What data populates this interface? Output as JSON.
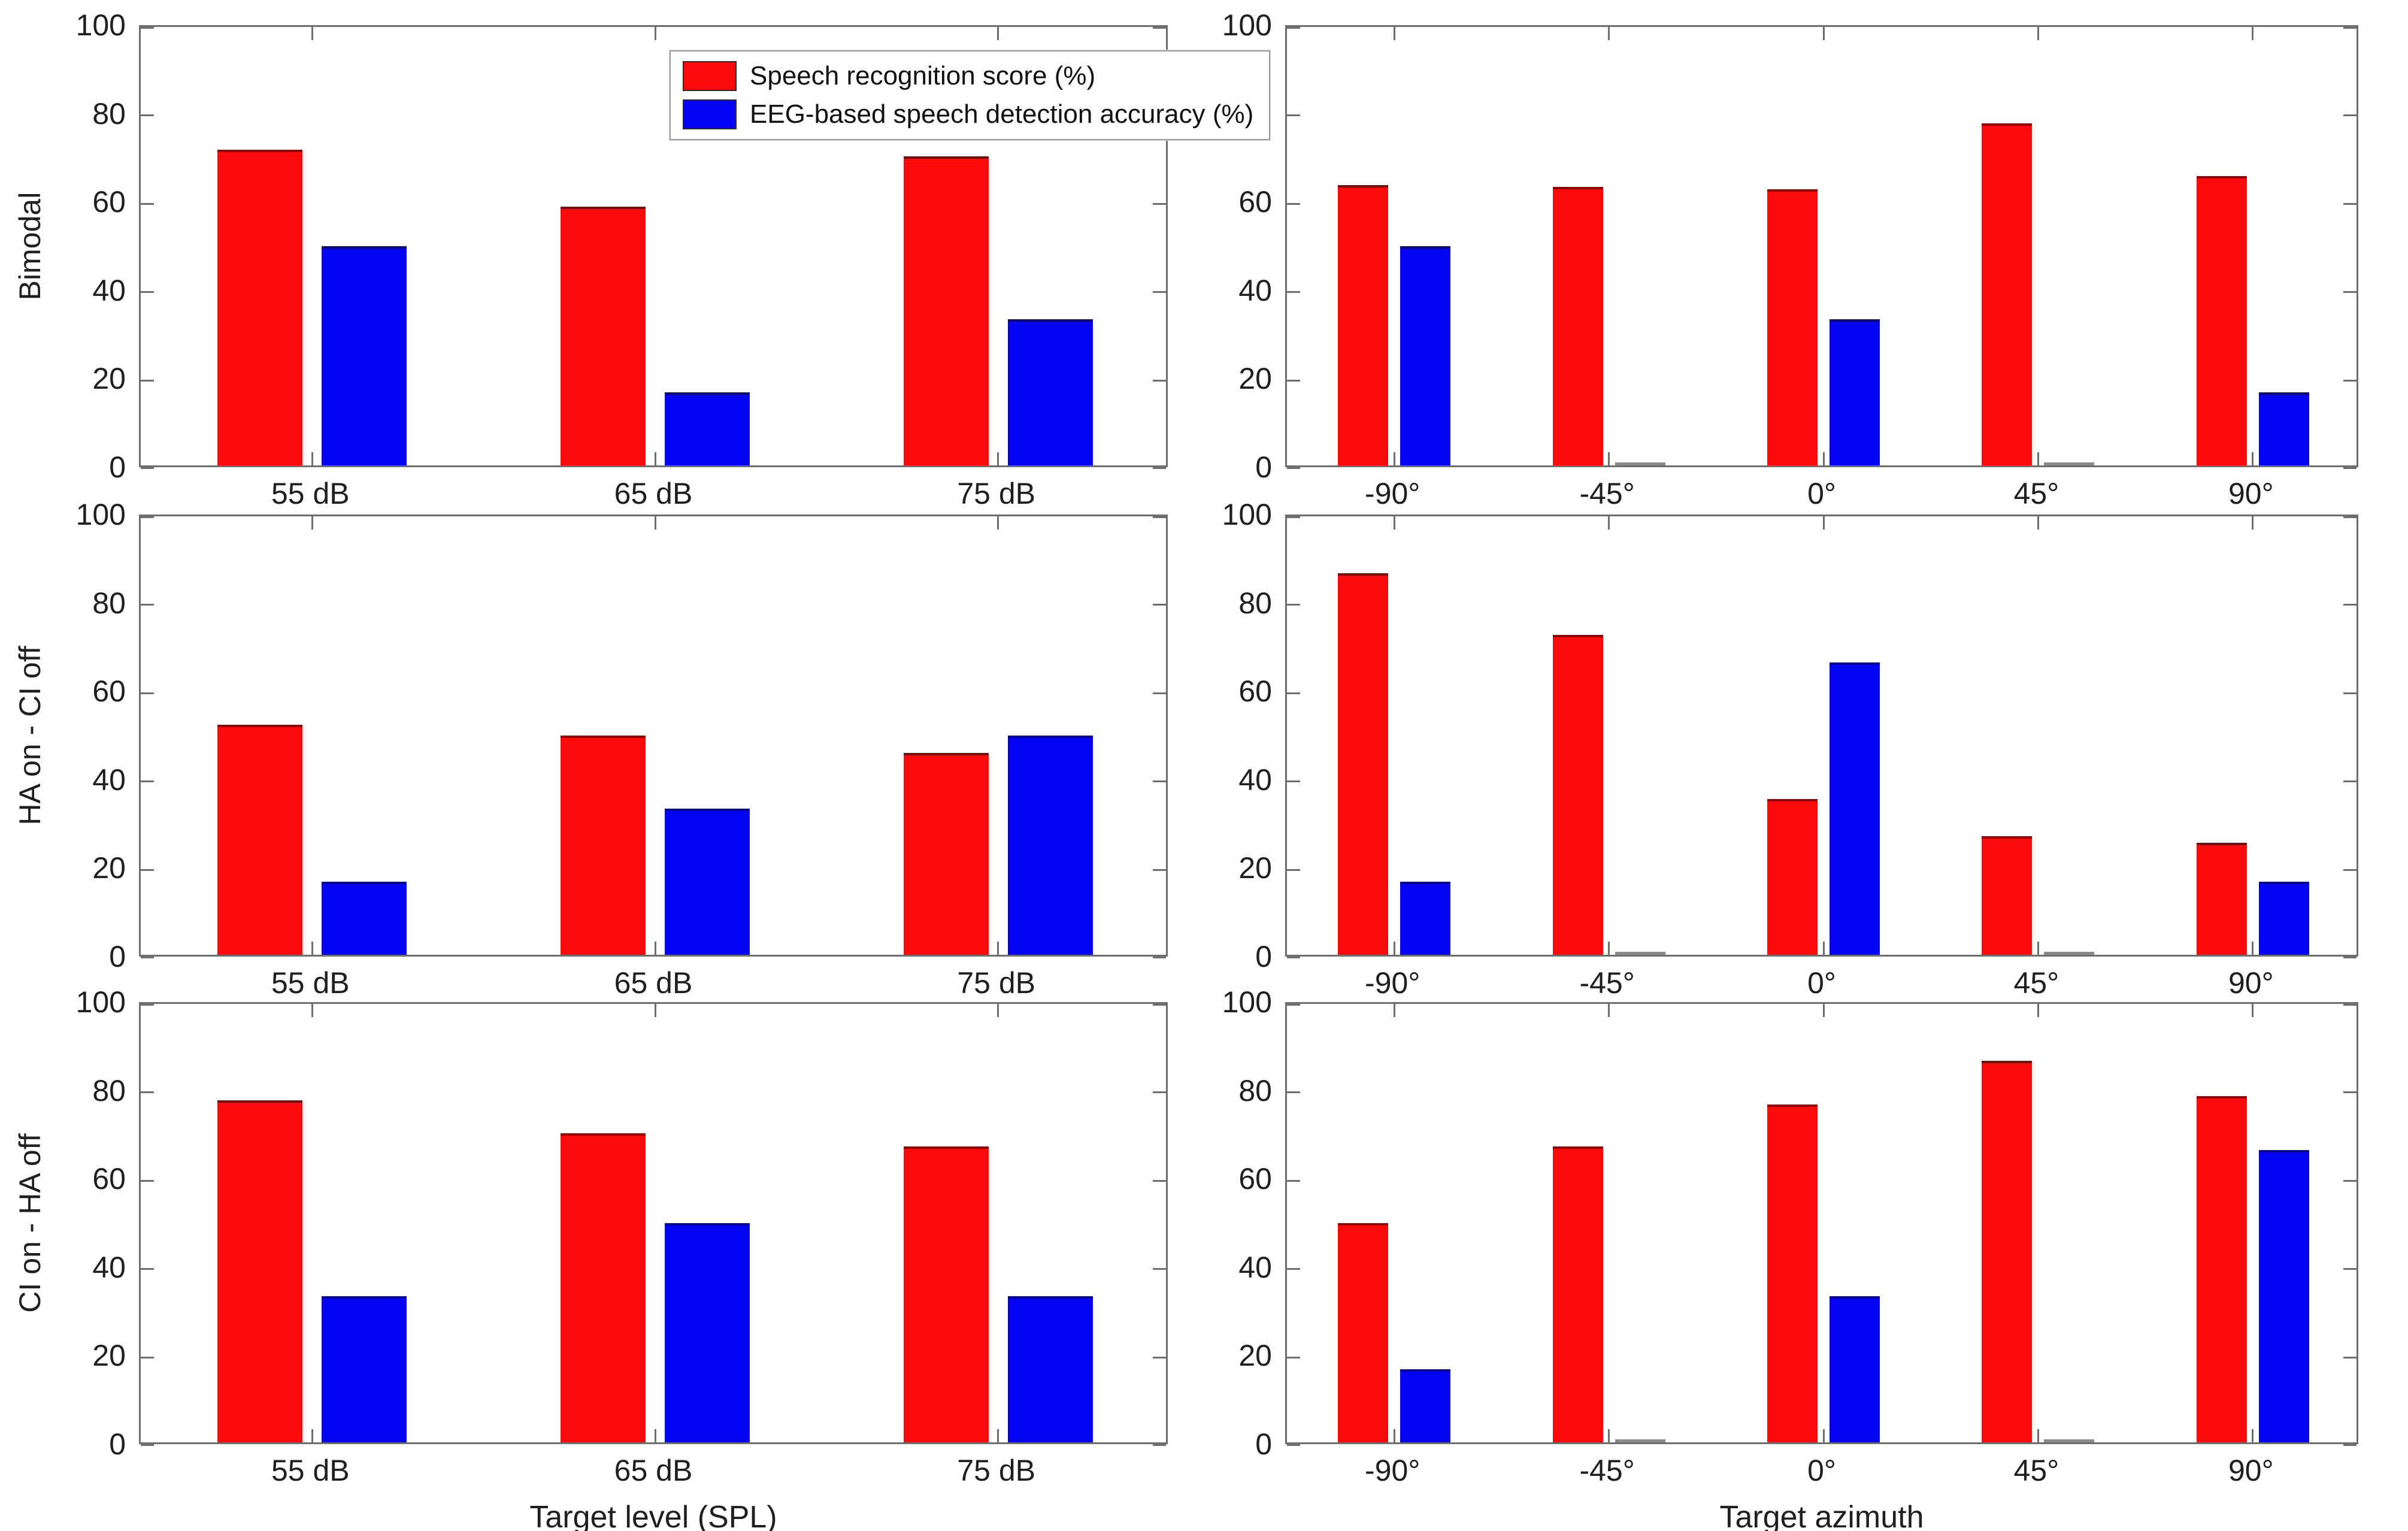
{
  "figure": {
    "colors": {
      "speech_red": "#fa0a0a",
      "eeg_blue": "#0404f2",
      "axis_gray": "#6e6e6e"
    },
    "legend": {
      "entries": [
        {
          "label": "Speech recognition score (%)",
          "color": "#fa0a0a"
        },
        {
          "label": "EEG-based speech detection accuracy (%)",
          "color": "#0404f2"
        }
      ],
      "location": "upper right of first subplot"
    },
    "row_labels": [
      "Bimodal",
      "HA on - CI off",
      "CI on - HA off"
    ],
    "xaxis_titles": [
      "Target level (SPL)",
      "Target azimuth"
    ]
  },
  "chart_data": [
    {
      "id": "bimodal-level",
      "type": "bar",
      "row": 0,
      "col": 0,
      "row_label": "Bimodal",
      "xlabel": "",
      "categories": [
        "55 dB",
        "65 dB",
        "75 dB"
      ],
      "ylim": [
        0,
        100
      ],
      "yticks": [
        0,
        20,
        40,
        60,
        80,
        100
      ],
      "grid": false,
      "legend_here": true,
      "series": [
        {
          "name": "Speech recognition score (%)",
          "color": "red",
          "values": [
            72,
            59,
            70.5
          ]
        },
        {
          "name": "EEG-based speech detection accuracy (%)",
          "color": "blue",
          "values": [
            50,
            16.7,
            33.3
          ]
        }
      ]
    },
    {
      "id": "bimodal-azimuth",
      "type": "bar",
      "row": 0,
      "col": 1,
      "row_label": "",
      "xlabel": "",
      "categories": [
        "-90°",
        "-45°",
        "0°",
        "45°",
        "90°"
      ],
      "ylim": [
        0,
        100
      ],
      "yticks": [
        0,
        20,
        40,
        60,
        80,
        100
      ],
      "grid": false,
      "legend_here": false,
      "series": [
        {
          "name": "Speech recognition score (%)",
          "color": "red",
          "values": [
            64,
            63.5,
            63,
            78,
            66
          ]
        },
        {
          "name": "EEG-based speech detection accuracy (%)",
          "color": "blue",
          "values": [
            50,
            0,
            33.3,
            0,
            16.7
          ]
        }
      ]
    },
    {
      "id": "haon-cioff-level",
      "type": "bar",
      "row": 1,
      "col": 0,
      "row_label": "HA on - CI off",
      "xlabel": "",
      "categories": [
        "55 dB",
        "65 dB",
        "75 dB"
      ],
      "ylim": [
        0,
        100
      ],
      "yticks": [
        0,
        20,
        40,
        60,
        80,
        100
      ],
      "grid": false,
      "legend_here": false,
      "series": [
        {
          "name": "Speech recognition score (%)",
          "color": "red",
          "values": [
            52.5,
            50,
            46
          ]
        },
        {
          "name": "EEG-based speech detection accuracy (%)",
          "color": "blue",
          "values": [
            16.7,
            33.3,
            50
          ]
        }
      ]
    },
    {
      "id": "haon-cioff-azimuth",
      "type": "bar",
      "row": 1,
      "col": 1,
      "row_label": "",
      "xlabel": "",
      "categories": [
        "-90°",
        "-45°",
        "0°",
        "45°",
        "90°"
      ],
      "ylim": [
        0,
        100
      ],
      "yticks": [
        0,
        20,
        40,
        60,
        80,
        100
      ],
      "grid": false,
      "legend_here": false,
      "series": [
        {
          "name": "Speech recognition score (%)",
          "color": "red",
          "values": [
            87,
            73,
            35.5,
            27,
            25.5
          ]
        },
        {
          "name": "EEG-based speech detection accuracy (%)",
          "color": "blue",
          "values": [
            16.7,
            0,
            66.7,
            0,
            16.7
          ]
        }
      ]
    },
    {
      "id": "cion-haoff-level",
      "type": "bar",
      "row": 2,
      "col": 0,
      "row_label": "CI on - HA off",
      "xlabel": "Target level (SPL)",
      "categories": [
        "55 dB",
        "65 dB",
        "75 dB"
      ],
      "ylim": [
        0,
        100
      ],
      "yticks": [
        0,
        20,
        40,
        60,
        80,
        100
      ],
      "grid": false,
      "legend_here": false,
      "series": [
        {
          "name": "Speech recognition score (%)",
          "color": "red",
          "values": [
            78,
            70.5,
            67.5
          ]
        },
        {
          "name": "EEG-based speech detection accuracy (%)",
          "color": "blue",
          "values": [
            33.3,
            50,
            33.3
          ]
        }
      ]
    },
    {
      "id": "cion-haoff-azimuth",
      "type": "bar",
      "row": 2,
      "col": 1,
      "row_label": "",
      "xlabel": "Target azimuth",
      "categories": [
        "-90°",
        "-45°",
        "0°",
        "45°",
        "90°"
      ],
      "ylim": [
        0,
        100
      ],
      "yticks": [
        0,
        20,
        40,
        60,
        80,
        100
      ],
      "grid": false,
      "legend_here": false,
      "series": [
        {
          "name": "Speech recognition score (%)",
          "color": "red",
          "values": [
            50,
            67.5,
            77,
            87,
            79
          ]
        },
        {
          "name": "EEG-based speech detection accuracy (%)",
          "color": "blue",
          "values": [
            16.7,
            0,
            33.3,
            0,
            66.7
          ]
        }
      ]
    }
  ]
}
